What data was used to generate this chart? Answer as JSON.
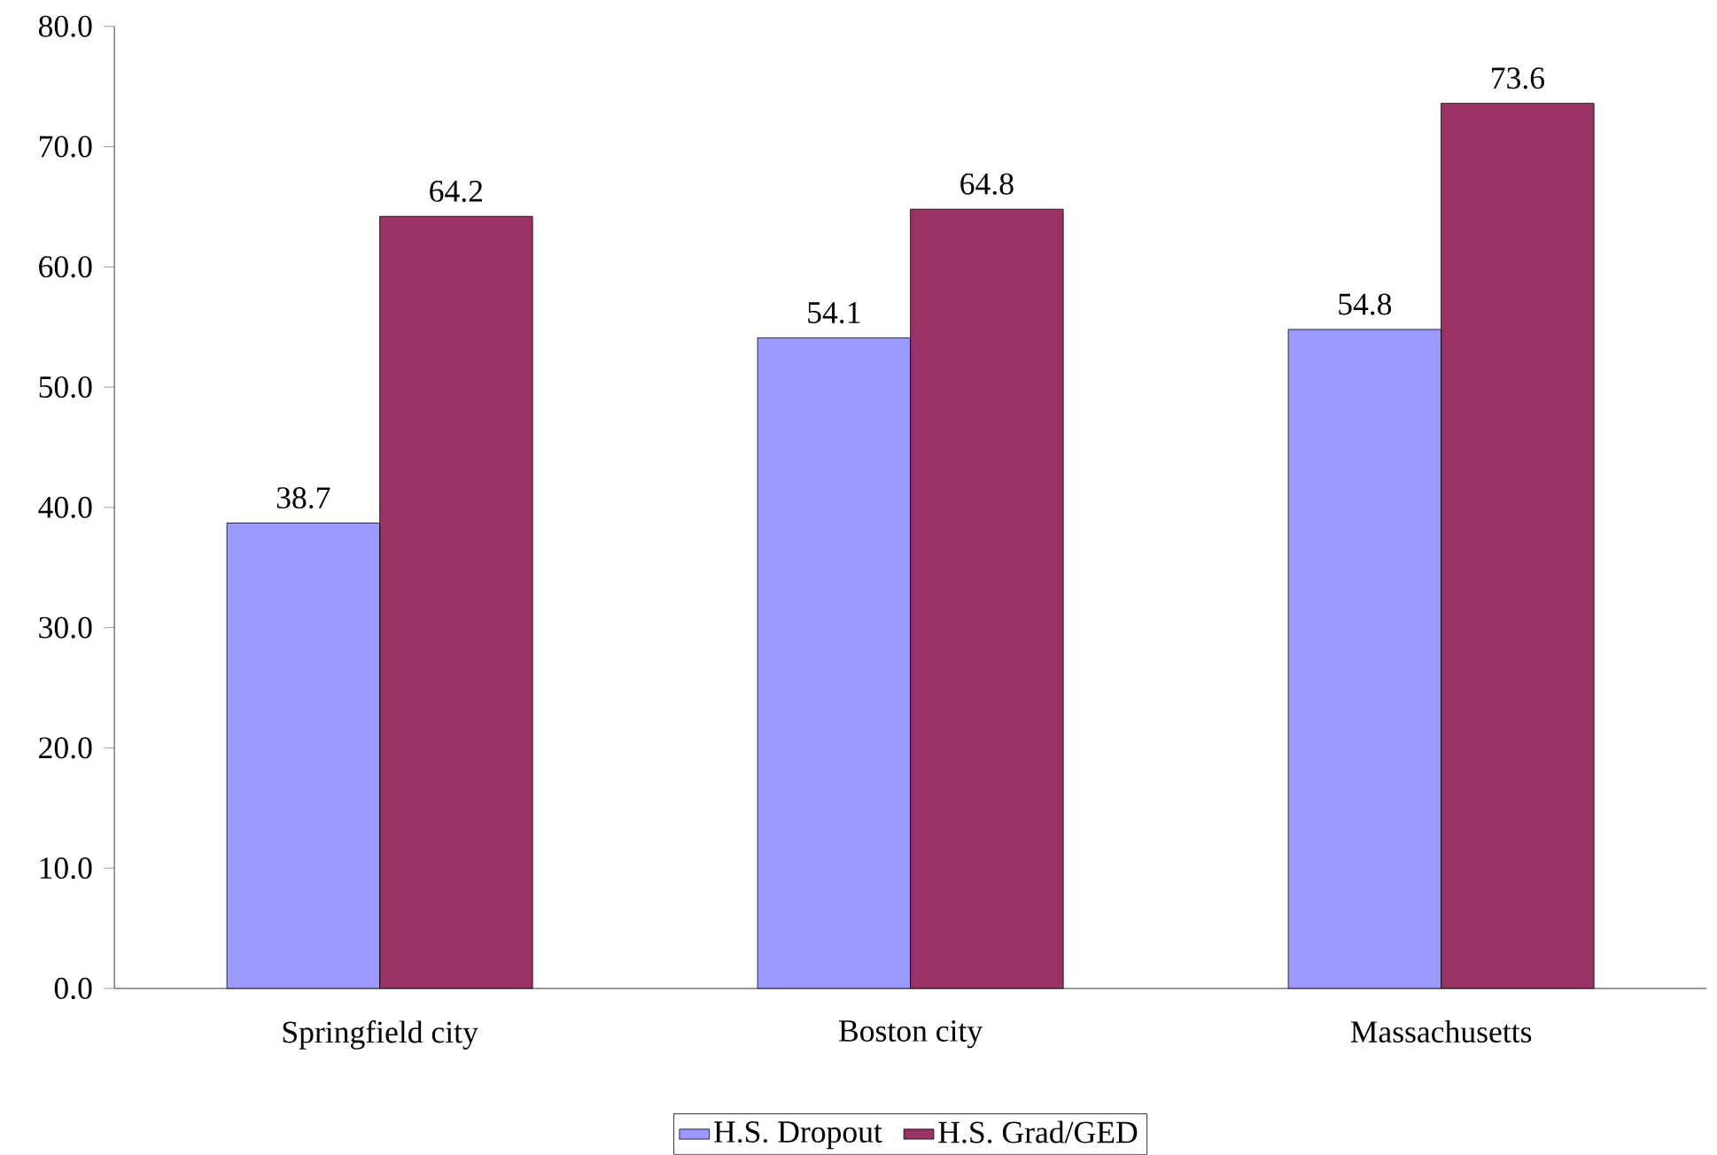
{
  "chart_data": {
    "type": "bar",
    "categories": [
      "Springfield city",
      "Boston city",
      "Massachusetts"
    ],
    "series": [
      {
        "name": "H.S. Dropout",
        "color": "#9999ff",
        "values": [
          38.7,
          54.1,
          54.8
        ]
      },
      {
        "name": "H.S. Grad/GED",
        "color": "#993366",
        "values": [
          64.2,
          64.8,
          73.6
        ]
      }
    ],
    "ylim": [
      0,
      80
    ],
    "yticks": [
      {
        "value": 0,
        "label": "0.0"
      },
      {
        "value": 10,
        "label": "10.0"
      },
      {
        "value": 20,
        "label": "20.0"
      },
      {
        "value": 30,
        "label": "30.0"
      },
      {
        "value": 40,
        "label": "40.0"
      },
      {
        "value": 50,
        "label": "50.0"
      },
      {
        "value": 60,
        "label": "60.0"
      },
      {
        "value": 70,
        "label": "70.0"
      },
      {
        "value": 80,
        "label": "80.0"
      }
    ],
    "data_labels": true,
    "legend": "bottom",
    "grid": false
  }
}
